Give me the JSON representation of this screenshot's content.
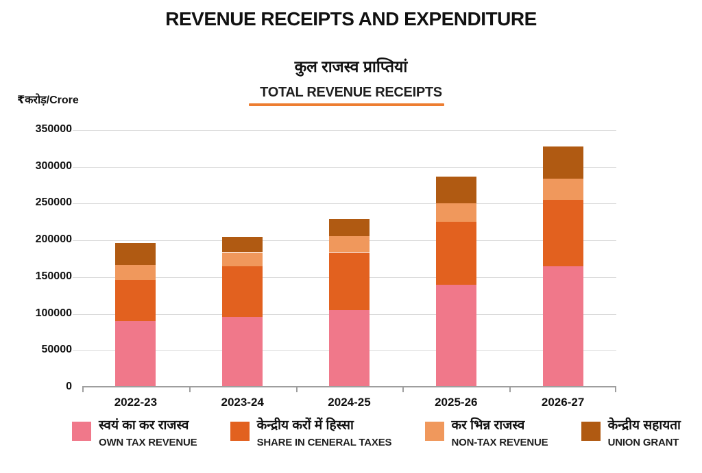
{
  "header": {
    "title": "REVENUE RECEIPTS AND EXPENDITURE",
    "subtitle_hindi": "कुल राजस्व प्राप्तियां",
    "subtitle_english": "TOTAL REVENUE RECEIPTS",
    "unit_label": "₹करोड़/Crore"
  },
  "colors": {
    "underline": "#ed7d31",
    "gridline": "#d9d9d9",
    "axis": "#9e9e9e",
    "own_tax": "#f0788a",
    "share_central_taxes": "#e2611f",
    "non_tax": "#f0985c",
    "union_grant": "#b05a12"
  },
  "chart_data": {
    "type": "bar",
    "stacked": true,
    "title": "TOTAL REVENUE RECEIPTS",
    "title_hindi": "कुल राजस्व प्राप्तियां",
    "unit": "₹करोड़/Crore",
    "categories": [
      "2022-23",
      "2023-24",
      "2024-25",
      "2025-26",
      "2026-27"
    ],
    "series": [
      {
        "name_hindi": "स्वयं का कर राजस्व",
        "name_english": "OWN TAX REVENUE",
        "color": "#f0788a",
        "values": [
          88000,
          94000,
          103000,
          138000,
          163000
        ]
      },
      {
        "name_hindi": "केन्द्रीय करों में हिस्सा",
        "name_english": "SHARE IN CENERAL TAXES",
        "color": "#e2611f",
        "values": [
          56000,
          69000,
          79000,
          85000,
          90000
        ]
      },
      {
        "name_hindi": "कर भिन्न राजस्व",
        "name_english": "NON-TAX REVENUE",
        "color": "#f0985c",
        "values": [
          21000,
          19000,
          22000,
          26000,
          29000
        ]
      },
      {
        "name_hindi": "केन्द्रीय सहायता",
        "name_english": "UNION GRANT",
        "color": "#b05a12",
        "values": [
          30000,
          21000,
          23000,
          36000,
          44000
        ]
      }
    ],
    "stack_totals": [
      195000,
      203000,
      227000,
      285000,
      326000
    ],
    "ylim": [
      0,
      350000
    ],
    "yticks": [
      0,
      50000,
      100000,
      150000,
      200000,
      250000,
      300000,
      350000
    ],
    "grid": true,
    "legend_position": "bottom"
  }
}
